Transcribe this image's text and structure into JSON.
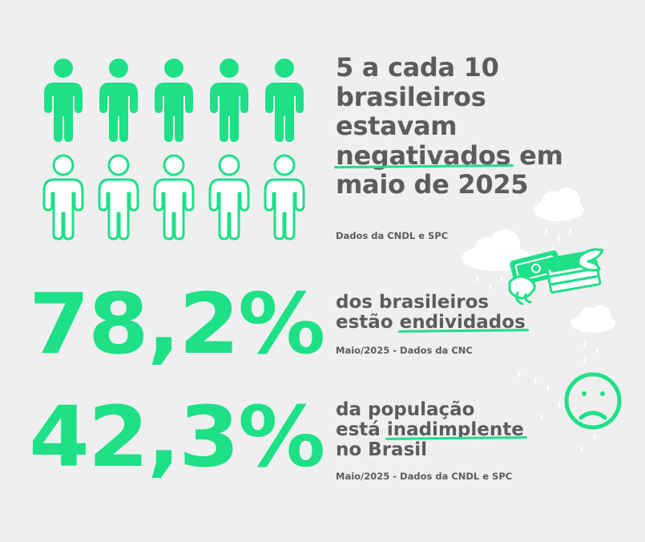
{
  "stat_people": {
    "headline_part1": "5 a cada 10",
    "headline_part2": "brasileiros",
    "headline_part3": "estavam",
    "headline_highlight": "negativados",
    "headline_part4": " em",
    "headline_part5": "maio de 2025",
    "source": "Dados da CNDL e SPC",
    "filled_people": 5,
    "total_people": 10
  },
  "stat_debt": {
    "value": "78,2%",
    "line1": "dos brasileiros",
    "line2_prefix": "estão ",
    "line2_highlight": "endividados",
    "source": "Maio/2025 - Dados da CNC"
  },
  "stat_default": {
    "value": "42,3%",
    "line1": "da população",
    "line2_prefix": "está ",
    "line2_highlight": "inadimplente",
    "line3": "no Brasil",
    "source": "Maio/2025 - Dados da CNDL e SPC"
  },
  "colors": {
    "accent": "#1ee087",
    "text": "#5c5c5c",
    "background": "#efefef",
    "cloud": "#ffffff"
  },
  "icons": [
    "person-icon",
    "flying-money-icon",
    "sad-face-icon",
    "rain-cloud-icon"
  ]
}
